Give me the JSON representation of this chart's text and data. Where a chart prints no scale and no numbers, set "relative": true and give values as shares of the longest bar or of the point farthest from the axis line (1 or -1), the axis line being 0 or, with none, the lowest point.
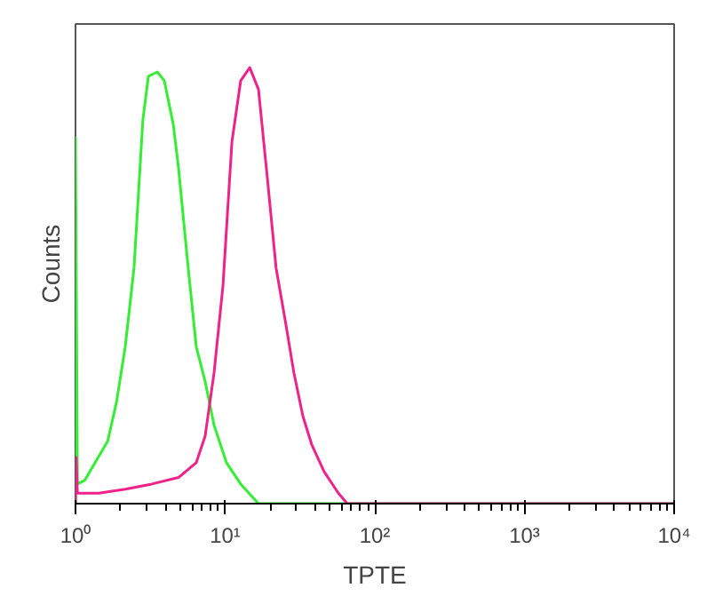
{
  "chart_data": {
    "type": "line",
    "xlabel": "TPTE",
    "ylabel": "Counts",
    "relative": true,
    "log": "x",
    "grid": false,
    "marker": "none",
    "line_style": "solid",
    "xlim": [
      1,
      10000
    ],
    "xticks": [
      {
        "value": 1,
        "label": "10⁰"
      },
      {
        "value": 10,
        "label": "10¹"
      },
      {
        "value": 100,
        "label": "10²"
      },
      {
        "value": 1000,
        "label": "10³"
      },
      {
        "value": 10000,
        "label": "10⁴"
      }
    ],
    "series": [
      {
        "color": "#33ee33",
        "x": [
          1,
          1,
          1.03,
          1.15,
          1.31,
          1.64,
          1.88,
          2.15,
          2.46,
          2.82,
          3.07,
          3.52,
          3.92,
          4.5,
          4.88,
          5.59,
          6.41,
          7.35,
          8.43,
          10.2,
          12.7,
          16.7,
          10000
        ],
        "values": [
          0,
          0.84,
          0.045,
          0.053,
          0.086,
          0.143,
          0.233,
          0.36,
          0.54,
          0.88,
          0.98,
          0.99,
          0.97,
          0.87,
          0.77,
          0.56,
          0.36,
          0.28,
          0.18,
          0.094,
          0.045,
          0,
          0
        ]
      },
      {
        "color": "#ee2288",
        "x": [
          1,
          1.01,
          1.03,
          1.43,
          2.15,
          3.24,
          4.88,
          6.41,
          7.35,
          8.43,
          9.67,
          11.1,
          12.7,
          14.6,
          16.7,
          19.1,
          21.9,
          25.2,
          28.8,
          33.1,
          37.9,
          45.9,
          57.1,
          65.5,
          10000
        ],
        "values": [
          0,
          0.106,
          0.024,
          0.024,
          0.033,
          0.045,
          0.06,
          0.094,
          0.155,
          0.3,
          0.5,
          0.83,
          0.97,
          1.0,
          0.95,
          0.75,
          0.54,
          0.42,
          0.3,
          0.2,
          0.135,
          0.073,
          0.024,
          0,
          0
        ]
      }
    ]
  }
}
